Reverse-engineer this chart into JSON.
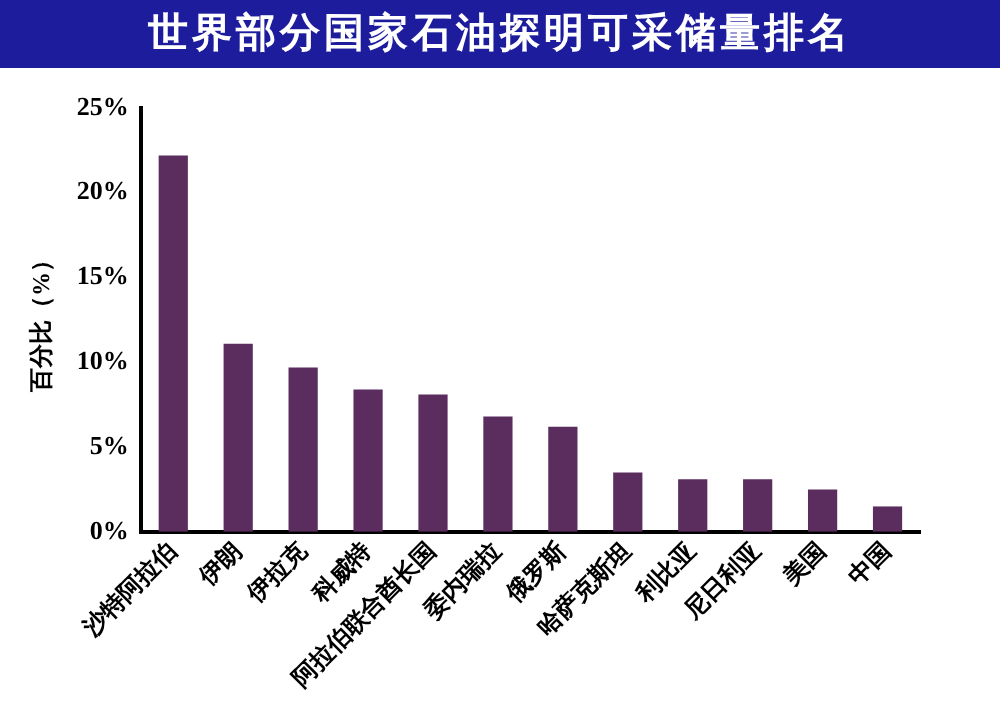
{
  "chart_data": {
    "type": "bar",
    "title": "世界部分国家石油探明可采储量排名",
    "ylabel": "百分比（%）",
    "categories": [
      "沙特阿拉伯",
      "伊朗",
      "伊拉克",
      "科威特",
      "阿拉伯联合酋长国",
      "委内瑞拉",
      "俄罗斯",
      "哈萨克斯坦",
      "利比亚",
      "尼日利亚",
      "美国",
      "中国"
    ],
    "values": [
      22.2,
      11.1,
      9.7,
      8.4,
      8.1,
      6.8,
      6.2,
      3.5,
      3.1,
      3.1,
      2.5,
      1.5
    ],
    "color": "#5b2d5e",
    "ylim": [
      0,
      25
    ],
    "yticks": [
      {
        "value": 0,
        "label": "0%"
      },
      {
        "value": 5,
        "label": "5%"
      },
      {
        "value": 10,
        "label": "10%"
      },
      {
        "value": 15,
        "label": "15%"
      },
      {
        "value": 20,
        "label": "20%"
      },
      {
        "value": 25,
        "label": "25%"
      }
    ],
    "grid": false,
    "legend": false
  }
}
